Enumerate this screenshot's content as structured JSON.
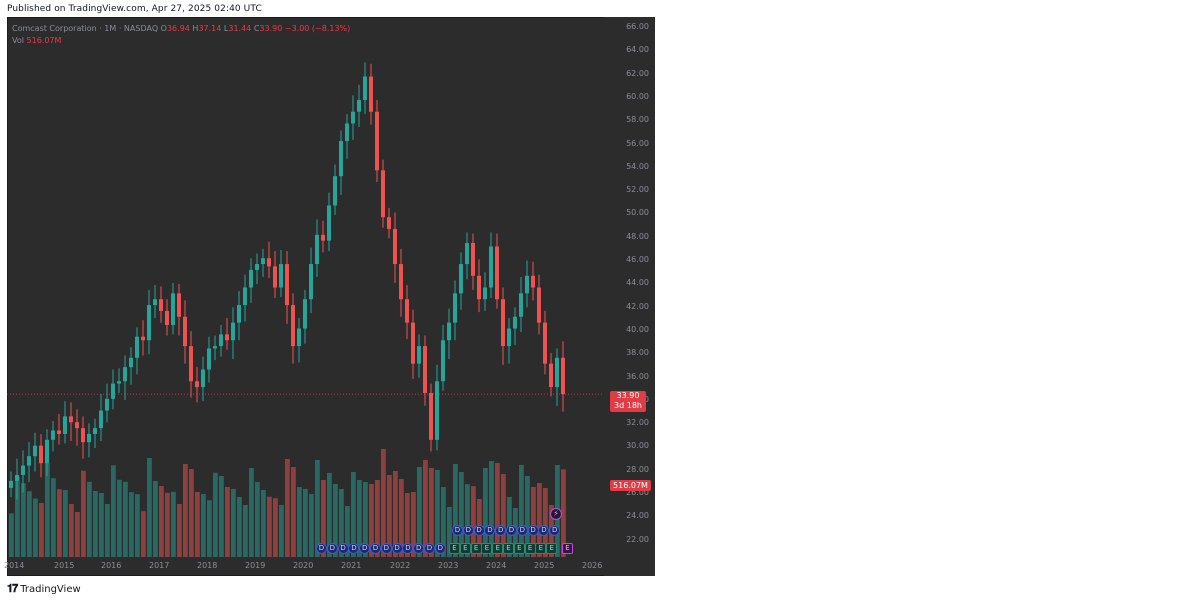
{
  "published": "Published on TradingView.com, Apr 27, 2025 02:40 UTC",
  "header": {
    "symbol": "Comcast Corporation · 1M · NASDAQ",
    "open_label": "O",
    "open": "36.94",
    "high_label": "H",
    "high": "37.14",
    "low_label": "L",
    "low": "31.44",
    "close_label": "C",
    "close": "33.90",
    "change": "−3.00 (−8.13%)",
    "vol_label": "Vol",
    "vol": "516.07M"
  },
  "price_axis": [
    "66.00",
    "64.00",
    "62.00",
    "60.00",
    "58.00",
    "56.00",
    "54.00",
    "52.00",
    "50.00",
    "48.00",
    "46.00",
    "44.00",
    "42.00",
    "40.00",
    "38.00",
    "36.00",
    "34.00",
    "32.00",
    "30.00",
    "28.00",
    "26.00",
    "24.00",
    "22.00"
  ],
  "last_price": {
    "price": "33.90",
    "countdown": "3d 18h"
  },
  "volume_badge": "516.07M",
  "time_axis": [
    "2014",
    "2015",
    "2016",
    "2017",
    "2018",
    "2019",
    "2020",
    "2021",
    "2022",
    "2023",
    "2024",
    "2025",
    "2026"
  ],
  "events": {
    "dividend_label": "D",
    "earnings_label": "E",
    "split_icon": "lightning-icon"
  },
  "colors": {
    "up": "#26a69a",
    "down": "#ef5350",
    "background": "#2c2c2c",
    "last_price": "#e23b44"
  },
  "logo": "TradingView",
  "chart_data": {
    "type": "candlestick",
    "title": "Comcast Corporation · 1M · NASDAQ",
    "ylim": [
      20,
      66
    ],
    "x": [
      "2014",
      "2015",
      "2016",
      "2017",
      "2018",
      "2019",
      "2020",
      "2021",
      "2022",
      "2023",
      "2024",
      "2025",
      "2026"
    ],
    "candles_close": [
      26.5,
      27.0,
      27.8,
      28.6,
      29.5,
      28.0,
      30.0,
      30.8,
      30.5,
      32.0,
      31.5,
      31.0,
      29.8,
      30.5,
      31.0,
      32.5,
      33.5,
      34.8,
      35.0,
      36.2,
      37.0,
      38.8,
      38.5,
      41.5,
      42.0,
      41.0,
      39.8,
      42.5,
      40.5,
      38.0,
      35.0,
      34.5,
      36.0,
      37.8,
      38.0,
      39.0,
      38.5,
      40.0,
      41.5,
      43.0,
      44.5,
      45.0,
      45.5,
      44.8,
      43.0,
      45.0,
      41.5,
      38.0,
      39.5,
      42.0,
      45.0,
      47.5,
      47.0,
      50.0,
      52.5,
      55.5,
      57.0,
      58.0,
      59.0,
      61.0,
      58.0,
      53.0,
      49.0,
      48.0,
      45.0,
      42.0,
      40.0,
      36.5,
      38.0,
      34.0,
      30.0,
      35.0,
      38.5,
      40.0,
      42.5,
      45.0,
      46.8,
      44.0,
      42.0,
      43.0,
      46.5,
      42.0,
      38.0,
      39.5,
      40.5,
      42.5,
      44.0,
      43.0,
      40.0,
      36.5,
      34.5,
      37.0,
      33.9
    ],
    "volume_ylim": [
      0,
      1200
    ],
    "last_close": 33.9
  }
}
